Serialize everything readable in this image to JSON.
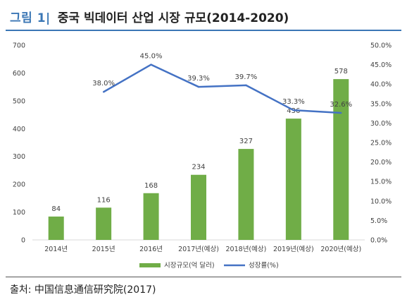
{
  "figure": {
    "label": "그림 1|",
    "title": "중국 빅데이터 산업 시장 규모(2014-2020)"
  },
  "source": "출처: 中国信息通信研究院(2017)",
  "colors": {
    "accent": "#3b77b5",
    "bar": "#70ad47",
    "line": "#4472c4",
    "text": "#404040"
  },
  "chart_data": {
    "type": "bar",
    "categories": [
      "2014년",
      "2015년",
      "2016년",
      "2017년(예상)",
      "2018년(예상)",
      "2019년(예상)",
      "2020년(예상)"
    ],
    "series": [
      {
        "name": "시장규모(억 달러)",
        "type": "bar",
        "axis": "left",
        "values": [
          84,
          116,
          168,
          234,
          327,
          436,
          578
        ],
        "labels": [
          "84",
          "116",
          "168",
          "234",
          "327",
          "436",
          "578"
        ]
      },
      {
        "name": "성장률(%)",
        "type": "line",
        "axis": "right",
        "values": [
          null,
          38.0,
          45.0,
          39.3,
          39.7,
          33.3,
          32.6
        ],
        "labels": [
          "",
          "38.0%",
          "45.0%",
          "39.3%",
          "39.7%",
          "33.3%",
          "32.6%"
        ]
      }
    ],
    "y_left": {
      "min": 0,
      "max": 700,
      "ticks": [
        "0",
        "100",
        "200",
        "300",
        "400",
        "500",
        "600",
        "700"
      ]
    },
    "y_right": {
      "min": 0,
      "max": 50,
      "ticks": [
        "0.0%",
        "5.0%",
        "10.0%",
        "15.0%",
        "20.0%",
        "25.0%",
        "30.0%",
        "35.0%",
        "40.0%",
        "45.0%",
        "50.0%"
      ]
    },
    "grid": false,
    "legend_position": "bottom"
  }
}
